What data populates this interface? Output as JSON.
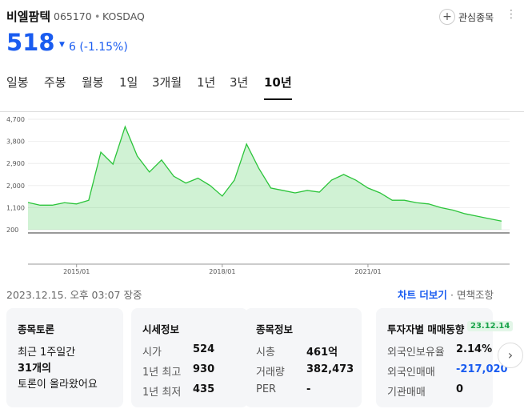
{
  "header": {
    "name": "비엘팜텍",
    "code": "065170",
    "market": "KOSDAQ",
    "watch": "관심종목"
  },
  "price": {
    "current": "518",
    "change": "6 (-1.15%)"
  },
  "tabs": [
    "일봉",
    "주봉",
    "월봉",
    "1일",
    "3개월",
    "1년",
    "3년",
    "10년"
  ],
  "chart_data": {
    "type": "line",
    "x": [
      "2014/01",
      "2014/04",
      "2014/07",
      "2014/10",
      "2015/01",
      "2015/04",
      "2015/07",
      "2015/10",
      "2016/01",
      "2016/04",
      "2016/07",
      "2016/10",
      "2017/01",
      "2017/04",
      "2017/07",
      "2017/10",
      "2018/01",
      "2018/04",
      "2018/07",
      "2018/10",
      "2019/01",
      "2019/04",
      "2019/07",
      "2019/10",
      "2020/01",
      "2020/04",
      "2020/07",
      "2020/10",
      "2021/01",
      "2021/04",
      "2021/07",
      "2021/10",
      "2022/01",
      "2022/04",
      "2022/07",
      "2022/10",
      "2023/01",
      "2023/04",
      "2023/07",
      "2023/10"
    ],
    "series": [
      {
        "color": "#2bc43a",
        "values": [
          1310,
          1200,
          1200,
          1300,
          1250,
          1400,
          3360,
          2870,
          4400,
          3200,
          2550,
          3040,
          2380,
          2100,
          2300,
          2000,
          1570,
          2220,
          3690,
          2710,
          1900,
          1800,
          1700,
          1800,
          1730,
          2220,
          2450,
          2220,
          1900,
          1700,
          1400,
          1400,
          1300,
          1250,
          1100,
          1000,
          850,
          750,
          650,
          550
        ]
      }
    ],
    "xlim": [
      "2014/01",
      "2023/12"
    ],
    "xticks": [
      "2015/01",
      "2018/01",
      "2021/01"
    ],
    "ylim": [
      200,
      4700
    ],
    "yticks": [
      200,
      {
        "value": 1100,
        "label": "1,100"
      },
      {
        "value": 2000,
        "label": "2,000"
      },
      {
        "value": 2900,
        "label": "2,900"
      },
      {
        "value": 3800,
        "label": "3,800"
      },
      {
        "value": 4700,
        "label": "4,700"
      }
    ],
    "grid": true
  },
  "info": {
    "datetime": "2023.12.15. 오후 03:07 장중",
    "chart_more": "차트 더보기",
    "faq": "면책조항"
  },
  "cards": [
    {
      "title": "종목토론",
      "lines": [
        "최근 1주일간",
        "31개의",
        "토론이 올라왔어요"
      ]
    },
    {
      "title": "시세정보",
      "rows": [
        [
          "시가",
          "524"
        ],
        [
          "1년 최고",
          "930"
        ],
        [
          "1년 최저",
          "435"
        ]
      ]
    },
    {
      "title": "종목정보",
      "rows": [
        [
          "시총",
          "461억"
        ],
        [
          "거래량",
          "382,473"
        ],
        [
          "PER",
          "-"
        ]
      ]
    },
    {
      "title": "투자자별 매매동향",
      "badge": "23.12.14",
      "rows": [
        [
          "외국인보유율",
          "2.14%"
        ],
        [
          "외국인매매",
          "-217,020"
        ],
        [
          "기관매매",
          "0"
        ]
      ]
    }
  ]
}
